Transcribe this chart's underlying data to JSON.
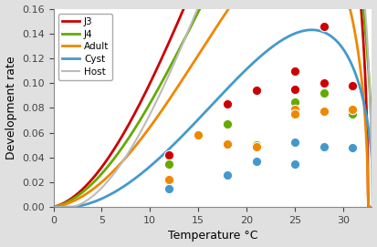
{
  "title": "",
  "xlabel": "Temperature °C",
  "ylabel": "Development rate",
  "xlim": [
    0,
    33
  ],
  "ylim": [
    0,
    0.16
  ],
  "xticks": [
    0,
    5,
    10,
    15,
    20,
    25,
    30
  ],
  "yticks": [
    0,
    0.02,
    0.04,
    0.06,
    0.08,
    0.1,
    0.12,
    0.14,
    0.16
  ],
  "series": {
    "J3": {
      "color": "#cc0000",
      "lw": 2.0,
      "a": 0.000175,
      "Tmin": -2.0,
      "Tmax": 32.6,
      "m": 2.0
    },
    "J4": {
      "color": "#66aa00",
      "lw": 2.0,
      "a": 0.000145,
      "Tmin": -2.0,
      "Tmax": 33.1,
      "m": 2.0
    },
    "Adult": {
      "color": "#ee8800",
      "lw": 2.0,
      "a": 0.000118,
      "Tmin": -1.5,
      "Tmax": 32.6,
      "m": 2.0
    },
    "Cyst": {
      "color": "#4499cc",
      "lw": 2.0,
      "a": 8.5e-05,
      "Tmin": 2.0,
      "Tmax": 33.2,
      "m": 2.0
    },
    "Host": {
      "color": "#bbbbbb",
      "lw": 1.5,
      "a": 0.000195,
      "Tmin": 2.0,
      "Tmax": 33.0,
      "m": 2.0
    }
  },
  "scatter": {
    "J3": {
      "color": "#cc0000",
      "x": [
        12,
        18,
        18,
        21,
        25,
        25,
        28,
        28,
        31
      ],
      "y": [
        0.042,
        0.083,
        0.083,
        0.094,
        0.11,
        0.095,
        0.146,
        0.1,
        0.098
      ]
    },
    "J4": {
      "color": "#66aa00",
      "x": [
        12,
        15,
        18,
        21,
        25,
        25,
        28,
        31
      ],
      "y": [
        0.035,
        0.058,
        0.067,
        0.05,
        0.08,
        0.085,
        0.092,
        0.075
      ]
    },
    "Adult": {
      "color": "#ee8800",
      "x": [
        12,
        15,
        18,
        21,
        25,
        25,
        28,
        31
      ],
      "y": [
        0.022,
        0.058,
        0.051,
        0.049,
        0.079,
        0.075,
        0.077,
        0.079
      ]
    },
    "Cyst": {
      "color": "#4499cc",
      "x": [
        12,
        18,
        21,
        25,
        25,
        28,
        31
      ],
      "y": [
        0.015,
        0.026,
        0.037,
        0.052,
        0.035,
        0.049,
        0.048
      ]
    }
  },
  "background_color": "#e0e0e0",
  "plot_bg": "#ffffff",
  "legend_order": [
    "J3",
    "J4",
    "Adult",
    "Cyst",
    "Host"
  ]
}
